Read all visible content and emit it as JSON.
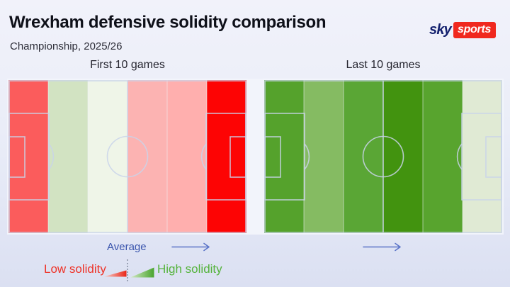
{
  "header": {
    "title": "Wrexham defensive solidity comparison",
    "subtitle": "Championship, 2025/26"
  },
  "logo": {
    "sky_text": "sky",
    "sports_text": "sports",
    "sky_color": "#13206e",
    "box_color": "#f0281e",
    "sports_color": "#ffffff"
  },
  "chart_data": {
    "type": "heatmap",
    "title": "Wrexham defensive solidity comparison",
    "subtitle": "Championship, 2025/26",
    "zones_axis": "pitch sixths, own goal (left) to opposition goal (right)",
    "legend": {
      "low_label": "Low solidity",
      "high_label": "High solidity",
      "midpoint_label": "Average"
    },
    "pitches": [
      {
        "label": "First 10 games",
        "zone_colors": [
          "#fb5c5c",
          "#d2e3c2",
          "#eff5e8",
          "#fcb3b2",
          "#ffafae",
          "#fd0404"
        ],
        "zone_levels": [
          "low",
          "slightly-high",
          "average",
          "slightly-low",
          "slightly-low",
          "very-low"
        ]
      },
      {
        "label": "Last 10 games",
        "zone_colors": [
          "#55a22c",
          "#85bb62",
          "#5aa635",
          "#42930f",
          "#58a42e",
          "#e0ead4"
        ],
        "zone_levels": [
          "high",
          "medium-high",
          "high",
          "very-high",
          "high",
          "slightly-high"
        ]
      }
    ]
  },
  "axis": {
    "average_label": "Average",
    "arrow_color": "#5b74c8",
    "label_color": "#3a55ad"
  },
  "legend": {
    "low_text": "Low solidity",
    "high_text": "High solidity",
    "low_text_color": "#ee3328",
    "high_text_color": "#55b33c",
    "wedge_red_from": "#f7d9d6",
    "wedge_red_to": "#ea2517",
    "wedge_green_from": "#d4e9c6",
    "wedge_green_to": "#4aa52e",
    "divider_color": "#9aa2b5"
  },
  "style_colors": {
    "pitch_line": "#c9d3ea",
    "title_color": "#0e1019",
    "subtitle_color": "#2d2d38",
    "background_top": "#f1f2fa",
    "background_bottom": "#dbe0f2"
  }
}
